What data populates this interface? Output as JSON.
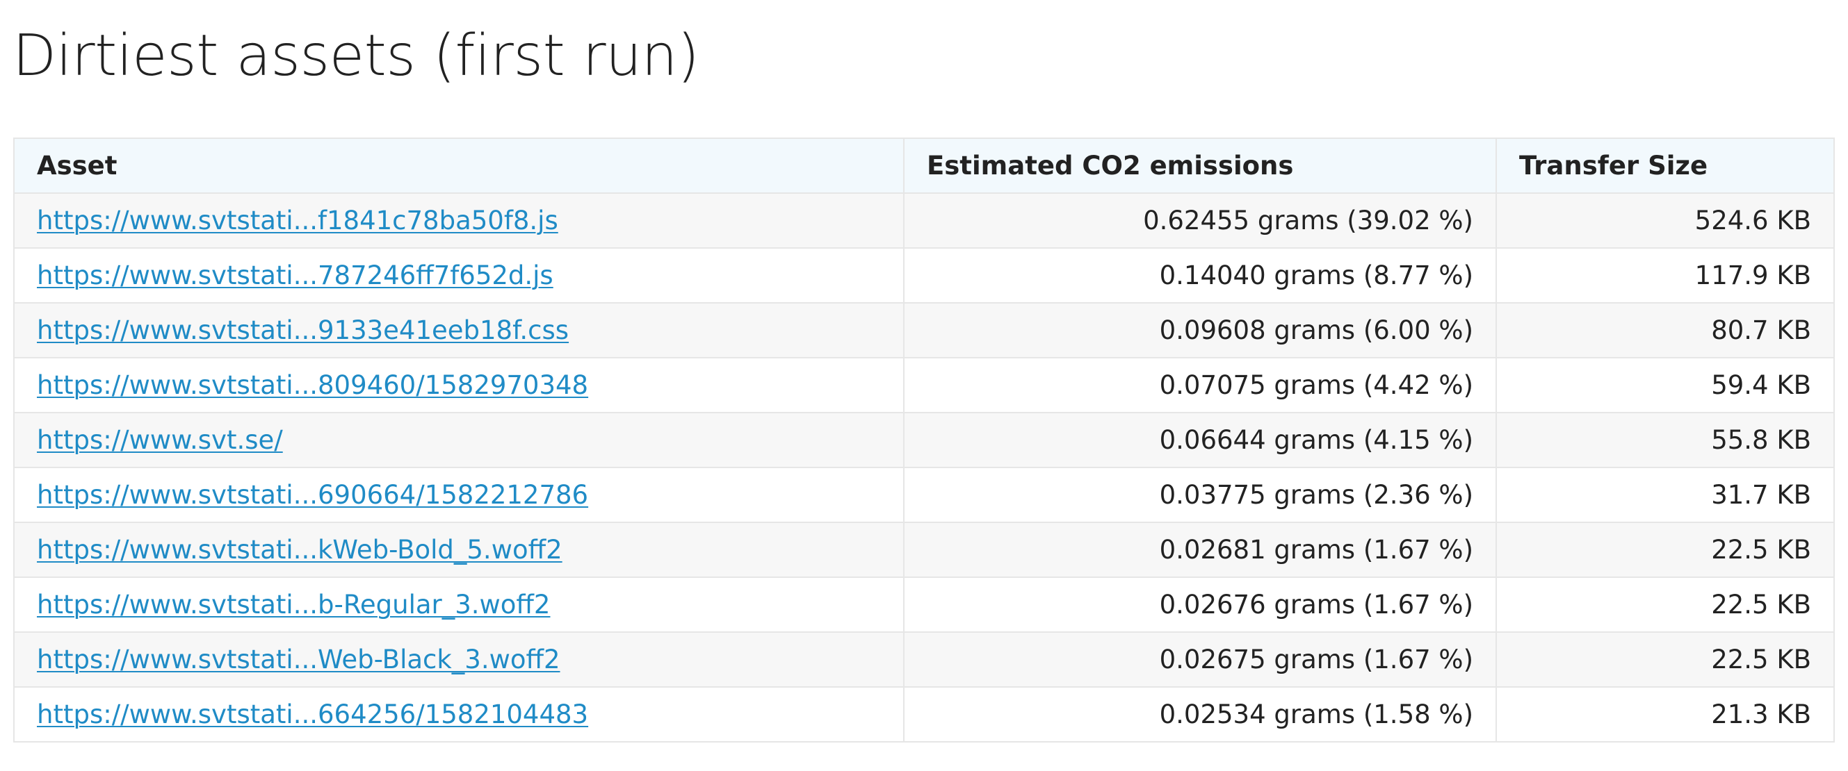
{
  "page": {
    "title": "Dirtiest assets (first run)"
  },
  "table": {
    "headers": {
      "asset": "Asset",
      "co2": "Estimated CO2 emissions",
      "size": "Transfer Size"
    },
    "rows": [
      {
        "asset": "https://www.svtstati...f1841c78ba50f8.js",
        "co2": "0.62455 grams (39.02 %)",
        "size": "524.6 KB"
      },
      {
        "asset": "https://www.svtstati...787246ff7f652d.js",
        "co2": "0.14040 grams (8.77 %)",
        "size": "117.9 KB"
      },
      {
        "asset": "https://www.svtstati...9133e41eeb18f.css",
        "co2": "0.09608 grams (6.00 %)",
        "size": "80.7 KB"
      },
      {
        "asset": "https://www.svtstati...809460/1582970348",
        "co2": "0.07075 grams (4.42 %)",
        "size": "59.4 KB"
      },
      {
        "asset": "https://www.svt.se/",
        "co2": "0.06644 grams (4.15 %)",
        "size": "55.8 KB"
      },
      {
        "asset": "https://www.svtstati...690664/1582212786",
        "co2": "0.03775 grams (2.36 %)",
        "size": "31.7 KB"
      },
      {
        "asset": "https://www.svtstati...kWeb-Bold_5.woff2",
        "co2": "0.02681 grams (1.67 %)",
        "size": "22.5 KB"
      },
      {
        "asset": "https://www.svtstati...b-Regular_3.woff2",
        "co2": "0.02676 grams (1.67 %)",
        "size": "22.5 KB"
      },
      {
        "asset": "https://www.svtstati...Web-Black_3.woff2",
        "co2": "0.02675 grams (1.67 %)",
        "size": "22.5 KB"
      },
      {
        "asset": "https://www.svtstati...664256/1582104483",
        "co2": "0.02534 grams (1.58 %)",
        "size": "21.3 KB"
      }
    ]
  },
  "colors": {
    "link": "#1f8bc6",
    "header_bg": "#f2f9fd",
    "stripe_bg": "#f7f7f7",
    "border": "#e6e6e6",
    "text": "#222222"
  }
}
